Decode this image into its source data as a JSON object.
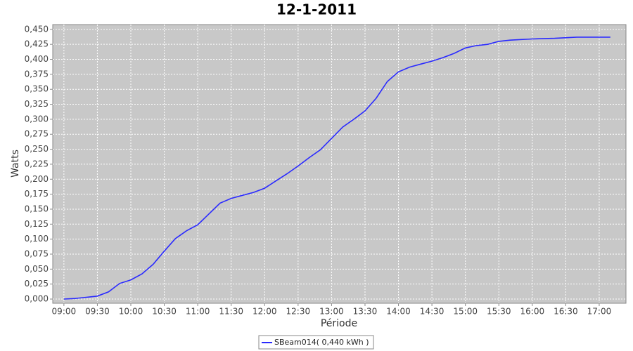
{
  "chart_data": {
    "type": "line",
    "title": "12-1-2011",
    "x_label": "Période",
    "y_label": "Watts",
    "x": [
      "09:00",
      "09:10",
      "09:20",
      "09:30",
      "09:40",
      "09:50",
      "10:00",
      "10:10",
      "10:20",
      "10:30",
      "10:40",
      "10:50",
      "11:00",
      "11:10",
      "11:20",
      "11:30",
      "11:40",
      "11:50",
      "12:00",
      "12:10",
      "12:20",
      "12:30",
      "12:40",
      "12:50",
      "13:00",
      "13:10",
      "13:20",
      "13:30",
      "13:40",
      "13:50",
      "14:00",
      "14:10",
      "14:20",
      "14:30",
      "14:40",
      "14:50",
      "15:00",
      "15:10",
      "15:20",
      "15:30",
      "15:40",
      "15:50",
      "16:00",
      "16:20",
      "16:40",
      "17:00",
      "17:10"
    ],
    "series": [
      {
        "name": "SBeam014( 0,440 kWh )",
        "color": "#2a2aff",
        "values": [
          0.0,
          0.001,
          0.003,
          0.005,
          0.012,
          0.026,
          0.032,
          0.042,
          0.058,
          0.08,
          0.101,
          0.114,
          0.124,
          0.142,
          0.16,
          0.168,
          0.173,
          0.178,
          0.185,
          0.197,
          0.209,
          0.222,
          0.236,
          0.249,
          0.268,
          0.287,
          0.3,
          0.314,
          0.335,
          0.363,
          0.379,
          0.387,
          0.392,
          0.397,
          0.403,
          0.41,
          0.419,
          0.423,
          0.425,
          0.43,
          0.432,
          0.433,
          0.434,
          0.435,
          0.437,
          0.437,
          0.437
        ]
      }
    ],
    "xlim": [
      "08:50",
      "17:24"
    ],
    "xticks": [
      "09:00",
      "09:30",
      "10:00",
      "10:30",
      "11:00",
      "11:30",
      "12:00",
      "12:30",
      "13:00",
      "13:30",
      "14:00",
      "14:30",
      "15:00",
      "15:30",
      "16:00",
      "16:30",
      "17:00"
    ],
    "ylim": [
      -0.007,
      0.458
    ],
    "yticks": [
      {
        "value": 0,
        "label": "0,000"
      },
      {
        "value": 0.025,
        "label": "0,025"
      },
      {
        "value": 0.05,
        "label": "0,050"
      },
      {
        "value": 0.075,
        "label": "0,075"
      },
      {
        "value": 0.1,
        "label": "0,100"
      },
      {
        "value": 0.125,
        "label": "0,125"
      },
      {
        "value": 0.15,
        "label": "0,150"
      },
      {
        "value": 0.175,
        "label": "0,175"
      },
      {
        "value": 0.2,
        "label": "0,200"
      },
      {
        "value": 0.225,
        "label": "0,225"
      },
      {
        "value": 0.25,
        "label": "0,250"
      },
      {
        "value": 0.275,
        "label": "0,275"
      },
      {
        "value": 0.3,
        "label": "0,300"
      },
      {
        "value": 0.325,
        "label": "0,325"
      },
      {
        "value": 0.35,
        "label": "0,350"
      },
      {
        "value": 0.375,
        "label": "0,375"
      },
      {
        "value": 0.4,
        "label": "0,400"
      },
      {
        "value": 0.425,
        "label": "0,425"
      },
      {
        "value": 0.45,
        "label": "0,450"
      }
    ],
    "grid": true,
    "legend": "bottom"
  }
}
